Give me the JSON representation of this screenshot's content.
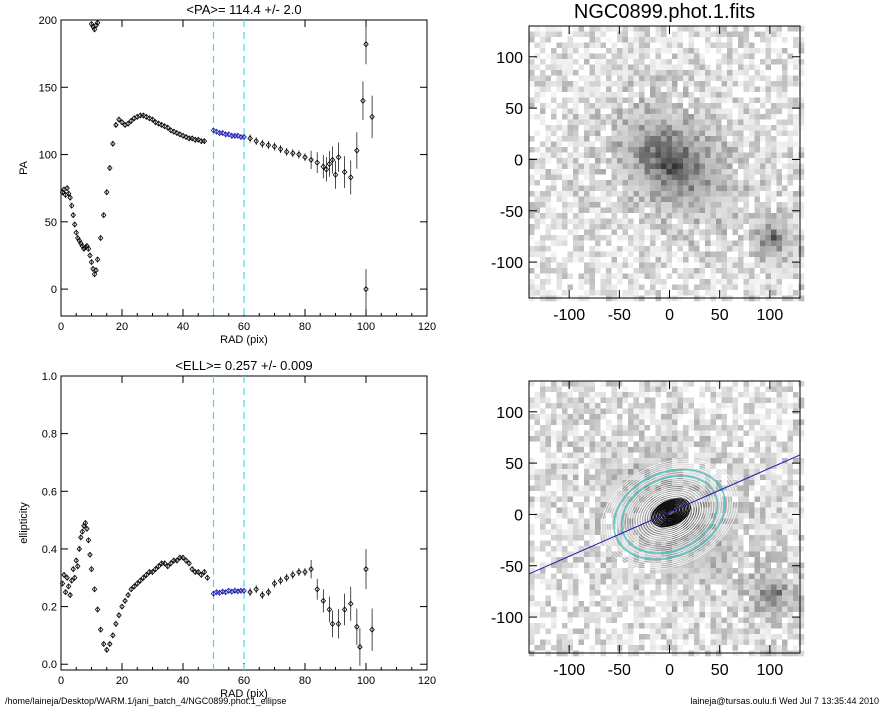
{
  "footer": {
    "left": "/home/laineja/Desktop/WARM.1/jani_batch_4/NGC0899.phot.1_ellipse",
    "right": "laineja@tursas.oulu.fi  Wed Jul  7 13:35:44 2010"
  },
  "chart_data": [
    {
      "type": "scatter",
      "title": "<PA>= 114.4 +/-   2.0",
      "xlabel": "RAD (pix)",
      "ylabel": "PA",
      "xlim": [
        0,
        120
      ],
      "ylim": [
        -20,
        200
      ],
      "xticks": [
        0,
        20,
        40,
        60,
        80,
        100,
        120
      ],
      "yticks": [
        0,
        50,
        100,
        150,
        200
      ],
      "reference_lines": [
        50,
        60
      ],
      "series": [
        {
          "color": "#000000",
          "points": [
            [
              0.5,
              72
            ],
            [
              1,
              74
            ],
            [
              1.5,
              70
            ],
            [
              2,
              75
            ],
            [
              2.5,
              71
            ],
            [
              3,
              68
            ],
            [
              3.5,
              62
            ],
            [
              4,
              55
            ],
            [
              4.5,
              48
            ],
            [
              5,
              42
            ],
            [
              5.5,
              38
            ],
            [
              6,
              36
            ],
            [
              6.5,
              34
            ],
            [
              7,
              32
            ],
            [
              7.5,
              30
            ],
            [
              8,
              31
            ],
            [
              8.5,
              32
            ],
            [
              9,
              30
            ],
            [
              9.5,
              25
            ],
            [
              10,
              20
            ],
            [
              10.5,
              15
            ],
            [
              11,
              11
            ],
            [
              11.5,
              14
            ],
            [
              12,
              22
            ],
            [
              13,
              38
            ],
            [
              14,
              55
            ],
            [
              15,
              72
            ],
            [
              16,
              90
            ],
            [
              17,
              108
            ],
            [
              18,
              122
            ],
            [
              19,
              126
            ],
            [
              20,
              124
            ],
            [
              21,
              122
            ],
            [
              22,
              123
            ],
            [
              23,
              125
            ],
            [
              24,
              127
            ],
            [
              25,
              128
            ],
            [
              26,
              129
            ],
            [
              27,
              129
            ],
            [
              28,
              128
            ],
            [
              29,
              127
            ],
            [
              30,
              126
            ],
            [
              31,
              124
            ],
            [
              32,
              123
            ],
            [
              33,
              122
            ],
            [
              34,
              121
            ],
            [
              35,
              120
            ],
            [
              36,
              118
            ],
            [
              37,
              117
            ],
            [
              38,
              116
            ],
            [
              39,
              115
            ],
            [
              40,
              114
            ],
            [
              41,
              113
            ],
            [
              42,
              112
            ],
            [
              43,
              112
            ],
            [
              44,
              111
            ],
            [
              45,
              111
            ],
            [
              46,
              110
            ],
            [
              47,
              110
            ],
            [
              10,
              197
            ],
            [
              10.5,
              195
            ],
            [
              11,
              193
            ],
            [
              11.5,
              196
            ],
            [
              12,
              198
            ],
            [
              62,
              112
            ],
            [
              64,
              110
            ],
            [
              66,
              108
            ],
            [
              68,
              107
            ],
            [
              70,
              106
            ],
            [
              72,
              104
            ],
            [
              74,
              102
            ],
            [
              76,
              101
            ],
            [
              78,
              100
            ],
            [
              80,
              98
            ],
            [
              82,
              96
            ],
            [
              84,
              94
            ],
            [
              86,
              91
            ],
            [
              87,
              89
            ],
            [
              88,
              93
            ],
            [
              89,
              96
            ],
            [
              90,
              85
            ],
            [
              91,
              98
            ],
            [
              93,
              87
            ],
            [
              95,
              83
            ],
            [
              97,
              103
            ],
            [
              99,
              140
            ],
            [
              100,
              182
            ],
            [
              100,
              0
            ],
            [
              102,
              128
            ]
          ]
        },
        {
          "color": "#1a1ab0",
          "points": [
            [
              50,
              118
            ],
            [
              51,
              117
            ],
            [
              52,
              116
            ],
            [
              53,
              116
            ],
            [
              54,
              115
            ],
            [
              55,
              115
            ],
            [
              56,
              114
            ],
            [
              57,
              114
            ],
            [
              58,
              114
            ],
            [
              59,
              113
            ],
            [
              60,
              113
            ]
          ]
        }
      ]
    },
    {
      "type": "scatter",
      "title": "<ELL>= 0.257 +/-  0.009",
      "xlabel": "RAD (pix)",
      "ylabel": "ellipticity",
      "xlim": [
        0,
        120
      ],
      "ylim": [
        -0.02,
        1.0
      ],
      "xticks": [
        0,
        20,
        40,
        60,
        80,
        100,
        120
      ],
      "yticks": [
        0.0,
        0.2,
        0.4,
        0.6,
        0.8,
        1.0
      ],
      "reference_lines": [
        50,
        60
      ],
      "series": [
        {
          "color": "#000000",
          "points": [
            [
              0.5,
              0.28
            ],
            [
              1,
              0.31
            ],
            [
              1.5,
              0.25
            ],
            [
              2,
              0.3
            ],
            [
              2.5,
              0.27
            ],
            [
              3,
              0.24
            ],
            [
              3.5,
              0.29
            ],
            [
              4,
              0.33
            ],
            [
              4.5,
              0.3
            ],
            [
              5,
              0.36
            ],
            [
              5.5,
              0.34
            ],
            [
              6,
              0.4
            ],
            [
              6.5,
              0.44
            ],
            [
              7,
              0.46
            ],
            [
              7.5,
              0.48
            ],
            [
              8,
              0.49
            ],
            [
              8.5,
              0.47
            ],
            [
              9,
              0.43
            ],
            [
              9.5,
              0.38
            ],
            [
              10,
              0.33
            ],
            [
              11,
              0.26
            ],
            [
              12,
              0.19
            ],
            [
              13,
              0.12
            ],
            [
              14,
              0.07
            ],
            [
              15,
              0.05
            ],
            [
              16,
              0.07
            ],
            [
              17,
              0.1
            ],
            [
              18,
              0.14
            ],
            [
              19,
              0.17
            ],
            [
              20,
              0.2
            ],
            [
              21,
              0.22
            ],
            [
              22,
              0.24
            ],
            [
              23,
              0.26
            ],
            [
              24,
              0.27
            ],
            [
              25,
              0.28
            ],
            [
              26,
              0.29
            ],
            [
              27,
              0.3
            ],
            [
              28,
              0.31
            ],
            [
              29,
              0.32
            ],
            [
              30,
              0.32
            ],
            [
              31,
              0.33
            ],
            [
              32,
              0.34
            ],
            [
              33,
              0.35
            ],
            [
              34,
              0.35
            ],
            [
              35,
              0.34
            ],
            [
              36,
              0.35
            ],
            [
              37,
              0.36
            ],
            [
              38,
              0.36
            ],
            [
              39,
              0.37
            ],
            [
              40,
              0.37
            ],
            [
              41,
              0.36
            ],
            [
              42,
              0.35
            ],
            [
              43,
              0.33
            ],
            [
              44,
              0.32
            ],
            [
              45,
              0.32
            ],
            [
              46,
              0.31
            ],
            [
              47,
              0.32
            ],
            [
              48,
              0.3
            ],
            [
              62,
              0.25
            ],
            [
              64,
              0.26
            ],
            [
              66,
              0.24
            ],
            [
              68,
              0.25
            ],
            [
              70,
              0.28
            ],
            [
              72,
              0.29
            ],
            [
              74,
              0.3
            ],
            [
              76,
              0.31
            ],
            [
              78,
              0.32
            ],
            [
              80,
              0.32
            ],
            [
              82,
              0.33
            ],
            [
              84,
              0.26
            ],
            [
              86,
              0.22
            ],
            [
              88,
              0.19
            ],
            [
              89,
              0.14
            ],
            [
              91,
              0.14
            ],
            [
              93,
              0.19
            ],
            [
              95,
              0.21
            ],
            [
              97,
              0.13
            ],
            [
              98,
              0.06
            ],
            [
              100,
              0.33
            ],
            [
              102,
              0.12
            ]
          ]
        },
        {
          "color": "#1a1ab0",
          "points": [
            [
              50,
              0.245
            ],
            [
              51,
              0.25
            ],
            [
              52,
              0.248
            ],
            [
              53,
              0.252
            ],
            [
              54,
              0.25
            ],
            [
              55,
              0.255
            ],
            [
              56,
              0.252
            ],
            [
              57,
              0.255
            ],
            [
              58,
              0.253
            ],
            [
              59,
              0.255
            ],
            [
              60,
              0.255
            ]
          ]
        }
      ]
    },
    {
      "type": "image",
      "title": "NGC0899.phot.1.fits",
      "xlim": [
        -140,
        130
      ],
      "ylim": [
        -135,
        130
      ],
      "xticks": [
        -100,
        -50,
        0,
        50,
        100
      ],
      "yticks": [
        -100,
        -50,
        0,
        50,
        100
      ]
    },
    {
      "type": "image",
      "title": "",
      "xlim": [
        -140,
        130
      ],
      "ylim": [
        -135,
        130
      ],
      "xticks": [
        -100,
        -50,
        0,
        50,
        100
      ],
      "yticks": [
        -100,
        -50,
        0,
        50,
        100
      ],
      "overlay_line": {
        "color": "#1a1ab0",
        "pa_deg": 114.4
      }
    }
  ]
}
